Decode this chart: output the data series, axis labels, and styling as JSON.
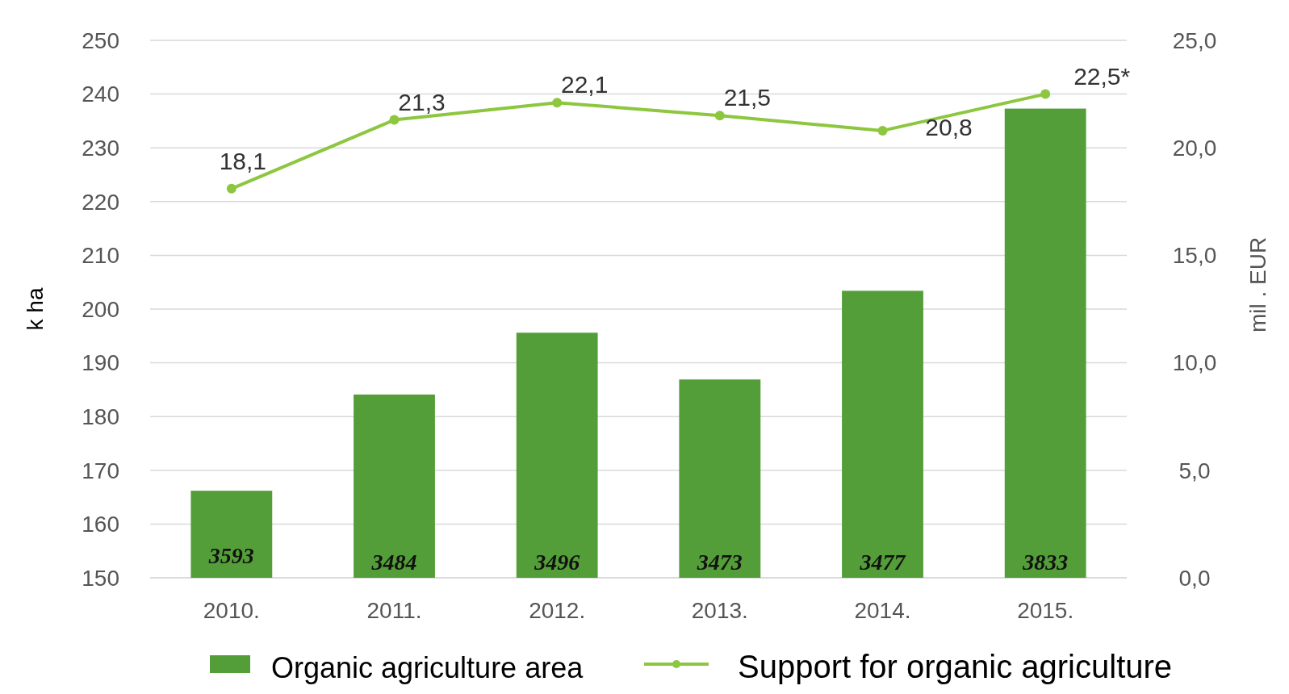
{
  "chart_data": {
    "type": "bar",
    "ylabel": "k ha",
    "y2label": "mil . EUR",
    "categories": [
      "2010.",
      "2011.",
      "2012.",
      "2013.",
      "2014.",
      "2015."
    ],
    "series": [
      {
        "name": "Organic agriculture area",
        "color": "#549e39",
        "values": [
          166.2,
          184.1,
          195.6,
          186.9,
          203.4,
          237.3
        ]
      },
      {
        "name": "Support  for organic agriculture",
        "type": "line",
        "axis": "y2",
        "color": "#8dc63f",
        "marker": "circle",
        "values": [
          18.1,
          21.3,
          22.1,
          21.5,
          20.8,
          22.5
        ],
        "value_labels": [
          "18,1",
          "21,3",
          "22,1",
          "21,5",
          "20,8",
          "22,5*"
        ]
      }
    ],
    "ylim": [
      150,
      250
    ],
    "yticks": [
      150,
      160,
      170,
      180,
      190,
      200,
      210,
      220,
      230,
      240,
      250
    ],
    "y2lim": [
      0,
      25
    ],
    "y2ticks": [
      {
        "value": 0,
        "label": "0,0"
      },
      {
        "value": 5,
        "label": "5,0"
      },
      {
        "value": 10,
        "label": "10,0"
      },
      {
        "value": 15,
        "label": "15,0"
      },
      {
        "value": 20,
        "label": "20,0"
      },
      {
        "value": 25,
        "label": "25,0"
      }
    ],
    "annotations": [
      "3593",
      "3484",
      "3496",
      "3473",
      "3477",
      "3833"
    ],
    "grid": "y",
    "legend": "bottom"
  }
}
